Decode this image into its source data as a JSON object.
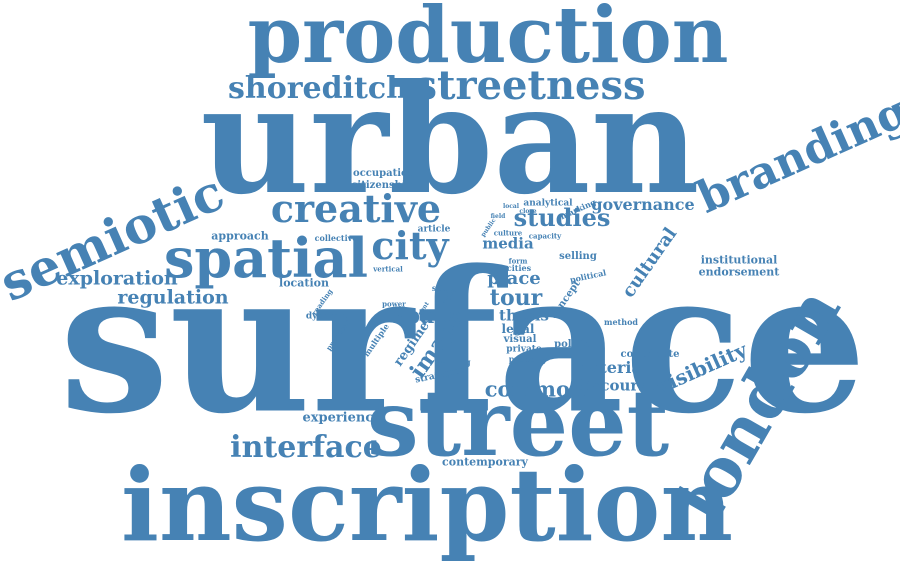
{
  "accent": "#4682b4",
  "words": {
    "production": "production",
    "urban": "urban",
    "shoreditch": "shoreditch",
    "streetness": "streetness",
    "branding": "branding",
    "creative": "creative",
    "semiotic": "semiotic",
    "spatial": "spatial",
    "city": "city",
    "studies": "studies",
    "governance": "governance",
    "surface": "surface",
    "street": "street",
    "london": "london",
    "inscription": "inscription",
    "interface": "interface",
    "exploration": "exploration",
    "regulation": "regulation",
    "approach": "approach",
    "collective": "collective",
    "occupation": "occupation",
    "citizenship": "citizenship",
    "article": "article",
    "location": "location",
    "media": "media",
    "cultural": "cultural",
    "institutional": "institutional",
    "endorsement": "endorsement",
    "analytical": "analytical",
    "capacity": "capacity",
    "marking": "marking",
    "selling": "selling",
    "place": "place",
    "cities": "cities",
    "tour": "tour",
    "thesis": "thesis",
    "legal": "legal",
    "visual": "visual",
    "private": "private",
    "property": "property",
    "politic": "politic",
    "material": "material",
    "contribute": "contribute",
    "method": "method",
    "visibility": "visibility",
    "space": "space",
    "image": "image",
    "regime": "regime",
    "common": "common",
    "discourse": "discourse",
    "experience": "experience",
    "contemporary": "contemporary",
    "strategies": "strategies",
    "walking": "walking",
    "multiple": "multiple",
    "dynamic": "dynamic",
    "reading": "reading",
    "practices": "practices",
    "vertical": "vertical",
    "concept": "concept",
    "political": "political",
    "site": "site",
    "role": "role",
    "power": "power",
    "culture": "culture",
    "form": "form",
    "public": "public",
    "field": "field",
    "local": "local",
    "close": "close",
    "cont": "cont"
  }
}
